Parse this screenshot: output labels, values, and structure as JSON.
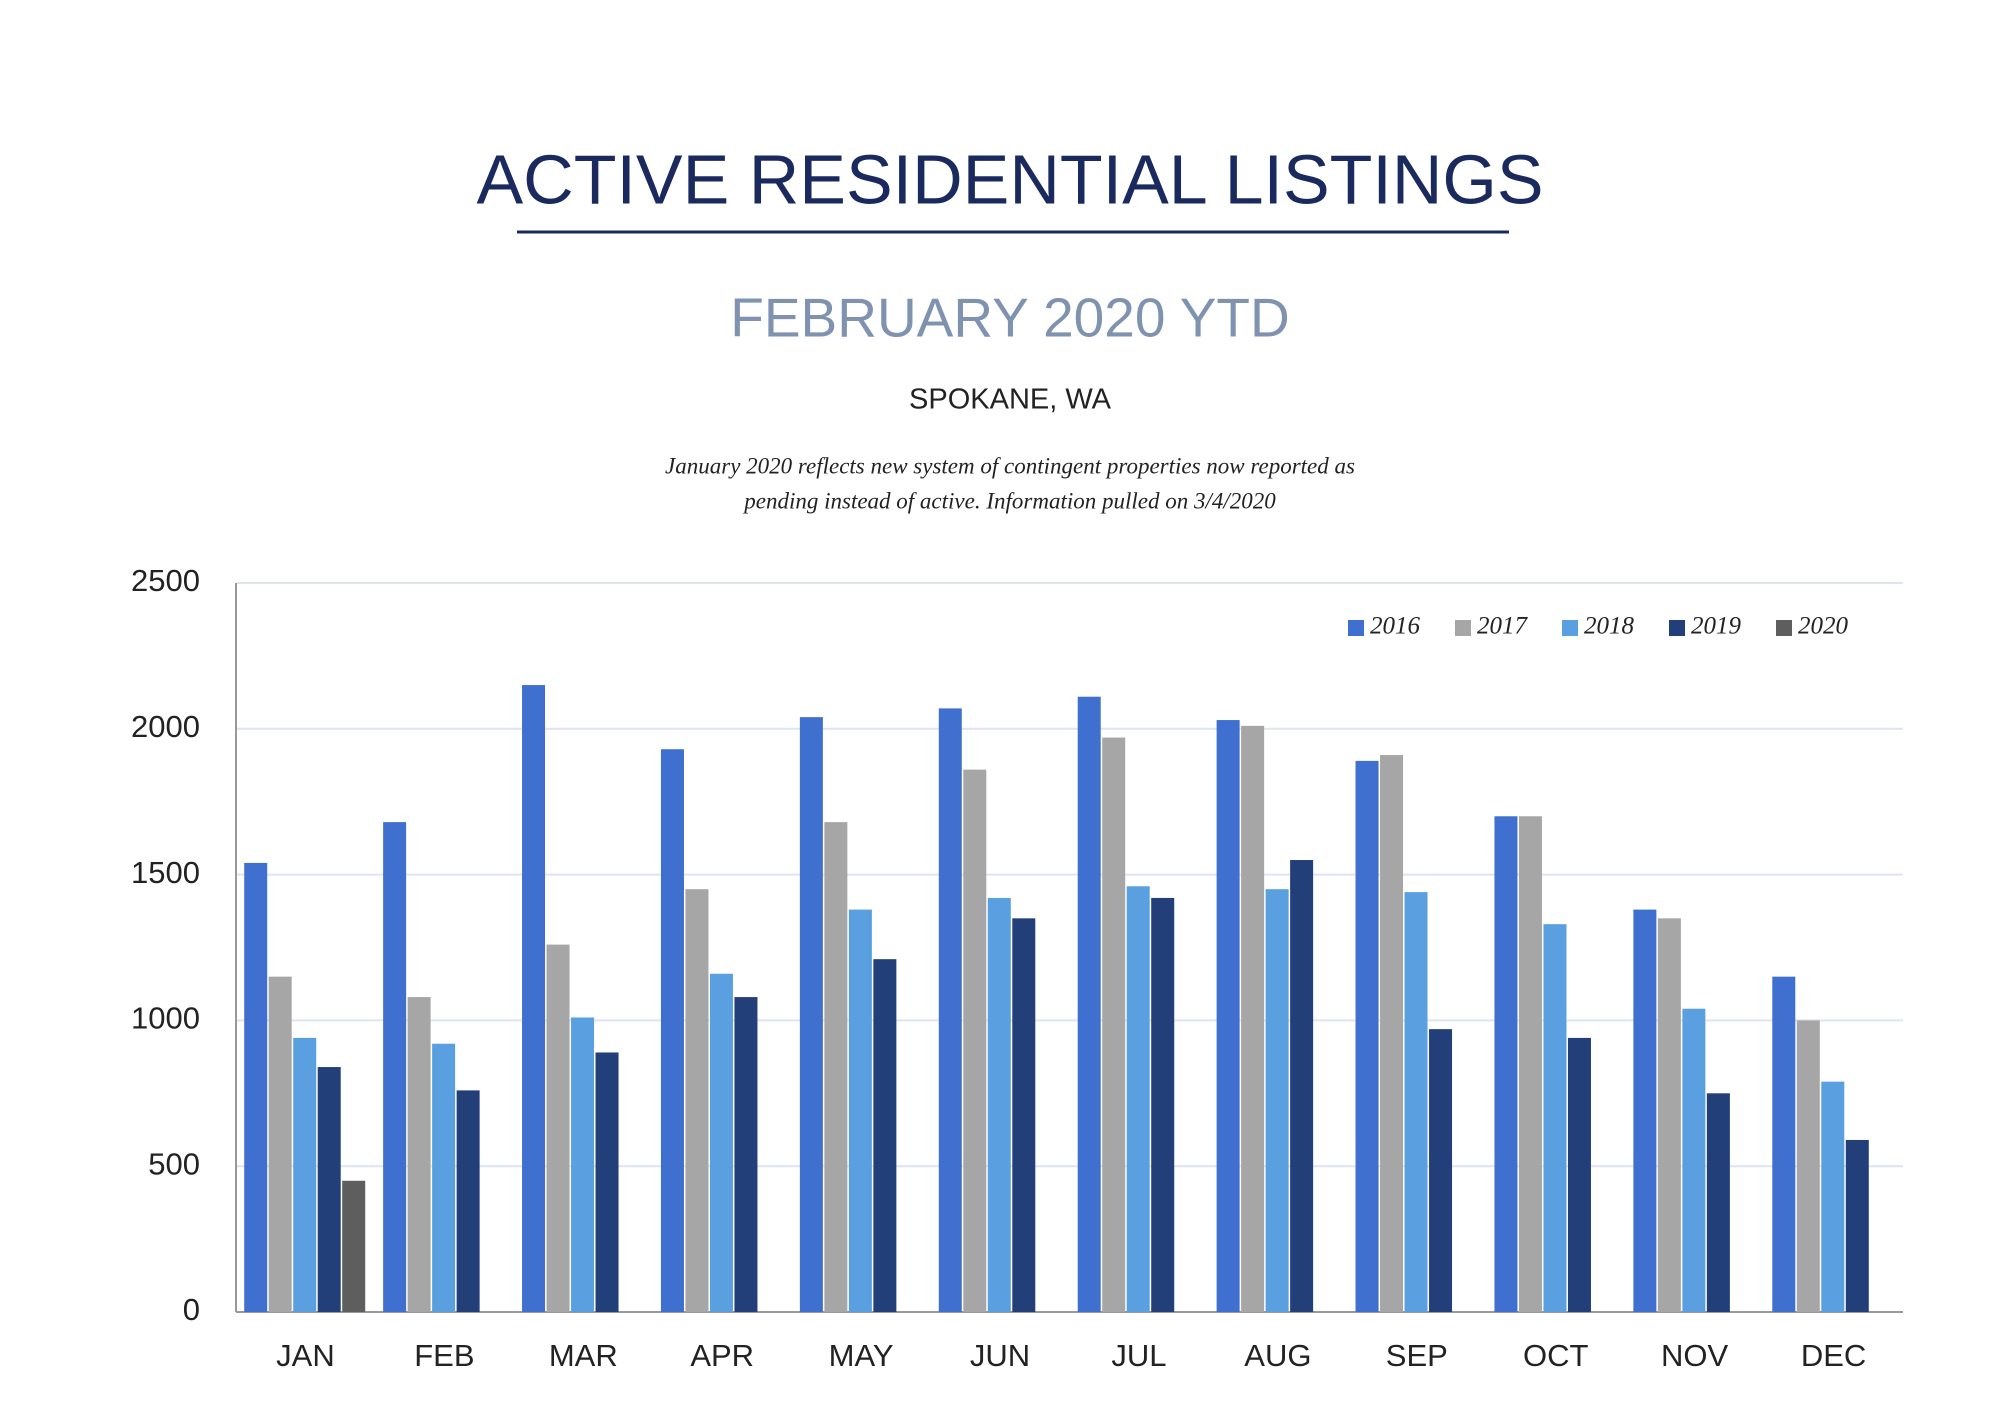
{
  "chart_data": {
    "type": "bar",
    "title": "ACTIVE RESIDENTIAL LISTINGS",
    "subtitle": "FEBRUARY 2020 YTD",
    "location": "SPOKANE, WA",
    "note_lines": [
      "January 2020 reflects new system of contingent properties now reported as",
      "pending instead of active.  Information pulled on 3/4/2020"
    ],
    "categories": [
      "JAN",
      "FEB",
      "MAR",
      "APR",
      "MAY",
      "JUN",
      "JUL",
      "AUG",
      "SEP",
      "OCT",
      "NOV",
      "DEC"
    ],
    "series": [
      {
        "name": "2016",
        "color": "#3f6fcf",
        "values": [
          1540,
          1680,
          2150,
          1930,
          2040,
          2070,
          2110,
          2030,
          1890,
          1700,
          1380,
          1150
        ]
      },
      {
        "name": "2017",
        "color": "#a6a6a6",
        "values": [
          1150,
          1080,
          1260,
          1450,
          1680,
          1860,
          1970,
          2010,
          1910,
          1700,
          1350,
          1000
        ]
      },
      {
        "name": "2018",
        "color": "#5aa0e0",
        "values": [
          940,
          920,
          1010,
          1160,
          1380,
          1420,
          1460,
          1450,
          1440,
          1330,
          1040,
          790
        ]
      },
      {
        "name": "2019",
        "color": "#223f7a",
        "values": [
          840,
          760,
          890,
          1080,
          1210,
          1350,
          1420,
          1550,
          970,
          940,
          750,
          590
        ]
      },
      {
        "name": "2020",
        "color": "#5e5e5e",
        "values": [
          450,
          null,
          null,
          null,
          null,
          null,
          null,
          null,
          null,
          null,
          null,
          null
        ]
      }
    ],
    "ylim": [
      0,
      2500
    ],
    "yticks": [
      0,
      500,
      1000,
      1500,
      2000,
      2500
    ],
    "grid": true,
    "legend": "top-right"
  }
}
